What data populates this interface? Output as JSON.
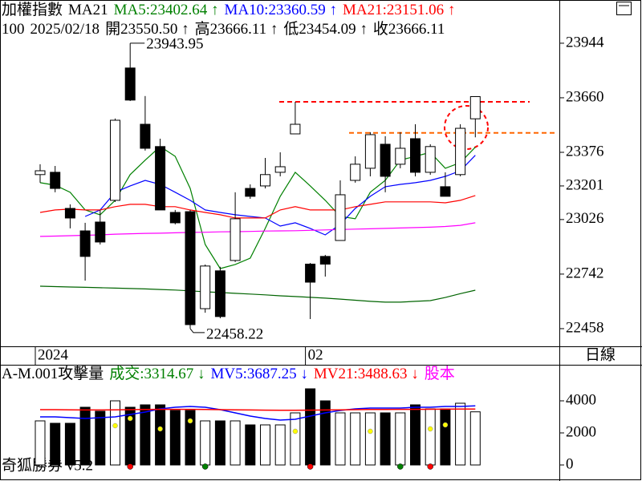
{
  "period_label": "日線",
  "footer": "奇狐勝券 v5.2",
  "chart_data": [
    {
      "type": "candlestick",
      "title_items": [
        {
          "text": "加權指數",
          "color": "#000000"
        },
        {
          "text": "MA21",
          "color": "#000000"
        }
      ],
      "info_items": [
        "100",
        "2025/02/18",
        "開23550.50 ↑",
        "高23666.11 ↑",
        "低23454.09 ↑",
        "收23666.11"
      ],
      "categories": [
        "2024",
        null,
        null,
        null,
        null,
        null,
        null,
        null,
        null,
        null,
        null,
        null,
        null,
        null,
        null,
        null,
        null,
        null,
        "02",
        null,
        null,
        null,
        null,
        null,
        null,
        null,
        null,
        null,
        null,
        null
      ],
      "open": [
        23260,
        23272,
        23084,
        22967,
        23013,
        23126,
        23815,
        23522,
        23406,
        23063,
        23067,
        22562,
        22759,
        22813,
        23188,
        23201,
        23272,
        23472,
        22794,
        22834,
        22917,
        23230,
        23293,
        23418,
        23314,
        23447,
        23272,
        23197,
        23260,
        23550.5
      ],
      "high": [
        23314,
        23305,
        23105,
        23009,
        23076,
        23552,
        23943.95,
        23669,
        23447,
        23076,
        23076,
        22792,
        22780,
        23168,
        23209,
        23347,
        23376,
        23639,
        22800,
        22842,
        23230,
        23355,
        23481,
        23460,
        23481,
        23522,
        23418,
        23272,
        23522,
        23666.11
      ],
      "low": [
        23218,
        23168,
        22980,
        22708,
        22896,
        23118,
        23643,
        23385,
        23076,
        23001,
        22458.22,
        22541,
        22512,
        22805,
        23134,
        23188,
        23251,
        23472,
        22508,
        22729,
        22917,
        23218,
        23251,
        23168,
        23293,
        23251,
        23259,
        23147,
        23251,
        23454.09
      ],
      "close": [
        23280,
        23188,
        23034,
        22834,
        22909,
        23543,
        23648,
        23397,
        23076,
        23009,
        22479,
        22784,
        22521,
        23030,
        23147,
        23260,
        23301,
        23522,
        22700,
        22794,
        23155,
        23314,
        23468,
        23251,
        23397,
        23272,
        23406,
        23147,
        23501,
        23666.11
      ],
      "up_color": "#ffffff",
      "down_color": "#000000",
      "series": [
        {
          "name": "MA5:23402.64 ↑",
          "color": "#008000",
          "values": [
            23218,
            23205,
            23168,
            23076,
            23051,
            23126,
            23260,
            23335,
            23406,
            23355,
            23188,
            22896,
            22771,
            22792,
            22825,
            22980,
            23147,
            23272,
            23201,
            23126,
            23042,
            23030,
            23168,
            23230,
            23335,
            23355,
            23376,
            23293,
            23322,
            23402.64
          ]
        },
        {
          "name": "MA10:23360.59 ↑",
          "color": "#0000ff",
          "values": [
            null,
            null,
            null,
            23042,
            23076,
            23168,
            23201,
            23230,
            23209,
            23168,
            23126,
            23076,
            23063,
            23051,
            23042,
            23034,
            22992,
            23009,
            22980,
            22946,
            23001,
            23084,
            23147,
            23197,
            23209,
            23218,
            23230,
            23251,
            23280,
            23360.59
          ]
        },
        {
          "name": "MA21:23151.06 ↑",
          "color": "#ff0000",
          "values": [
            23063,
            23076,
            23080,
            23076,
            23076,
            23093,
            23105,
            23105,
            23093,
            23093,
            23076,
            23063,
            23051,
            23034,
            23034,
            23034,
            23076,
            23093,
            23076,
            23076,
            23076,
            23093,
            23105,
            23118,
            23118,
            23118,
            23118,
            23113,
            23126,
            23151.06
          ]
        },
        {
          "color": "#ff00ff",
          "values": [
            22938,
            22940,
            22942,
            22944,
            22946,
            22950,
            22952,
            22954,
            22955,
            22957,
            22959,
            22960,
            22962,
            22963,
            22964,
            22966,
            22967,
            22968,
            22970,
            22972,
            22974,
            22976,
            22978,
            22980,
            22982,
            22984,
            22986,
            22990,
            22996,
            23009
          ]
        },
        {
          "color": "#006400",
          "values": [
            22679,
            22677,
            22675,
            22673,
            22671,
            22669,
            22667,
            22665,
            22662,
            22659,
            22655,
            22650,
            22646,
            22642,
            22638,
            22634,
            22629,
            22625,
            22621,
            22617,
            22612,
            22606,
            22600,
            22596,
            22596,
            22600,
            22604,
            22620,
            22640,
            22658
          ]
        }
      ],
      "reference_lines": [
        {
          "value": 23639,
          "color": "#ff0000"
        },
        {
          "value": 23477,
          "color": "#ff6600"
        }
      ],
      "ylim": [
        22366,
        24169
      ],
      "yticks": [
        23944,
        23660,
        23376,
        23201,
        23026,
        22742,
        22458
      ]
    },
    {
      "type": "volume",
      "title_items": [
        {
          "text": "A-M.001攻擊量",
          "color": "#000000"
        }
      ],
      "series": [
        {
          "name": "成交:3314.67 ↓",
          "color": "#008000",
          "values": [
            2750,
            2600,
            2600,
            3600,
            3350,
            4000,
            3600,
            3750,
            3750,
            3400,
            3400,
            2750,
            2750,
            2750,
            2500,
            2500,
            2500,
            3250,
            4750,
            4000,
            3250,
            3250,
            3250,
            3250,
            3250,
            3750,
            3500,
            3500,
            3850,
            3314.67
          ]
        },
        {
          "name": "MV5:3687.25 ↓",
          "color": "#0000ff",
          "values": [
            3000,
            3000,
            2950,
            2900,
            2950,
            3000,
            3150,
            3300,
            3500,
            3600,
            3650,
            3600,
            3450,
            3250,
            3050,
            2900,
            2800,
            2850,
            3050,
            3250,
            3400,
            3500,
            3550,
            3550,
            3550,
            3600,
            3600,
            3650,
            3650,
            3687.25
          ]
        },
        {
          "name": "MV21:3488.63 ↓",
          "color": "#ff0000",
          "values": [
            3450,
            3450,
            3440,
            3430,
            3430,
            3440,
            3450,
            3460,
            3470,
            3470,
            3470,
            3460,
            3450,
            3440,
            3430,
            3420,
            3410,
            3410,
            3420,
            3430,
            3440,
            3450,
            3460,
            3460,
            3470,
            3470,
            3475,
            3480,
            3485,
            3488.63
          ]
        }
      ],
      "extra_legend": {
        "text": "股本",
        "color": "#ff00ff"
      },
      "dots": {
        "color": "#ffff00",
        "values": [
          null,
          null,
          null,
          null,
          null,
          2450,
          2900,
          null,
          2250,
          null,
          2750,
          null,
          null,
          null,
          null,
          null,
          null,
          2100,
          null,
          null,
          null,
          null,
          2100,
          null,
          null,
          null,
          2250,
          2500,
          null,
          null
        ]
      },
      "signal_colors": [
        null,
        null,
        null,
        null,
        null,
        null,
        "#ff0000",
        null,
        null,
        null,
        null,
        "#008000",
        null,
        null,
        null,
        null,
        null,
        null,
        "#ff0000",
        null,
        null,
        null,
        null,
        null,
        "#008000",
        null,
        "#ff0000",
        null,
        null,
        null
      ],
      "ylim": [
        -1000,
        6200
      ],
      "yticks": [
        4000,
        2000,
        0
      ]
    }
  ]
}
